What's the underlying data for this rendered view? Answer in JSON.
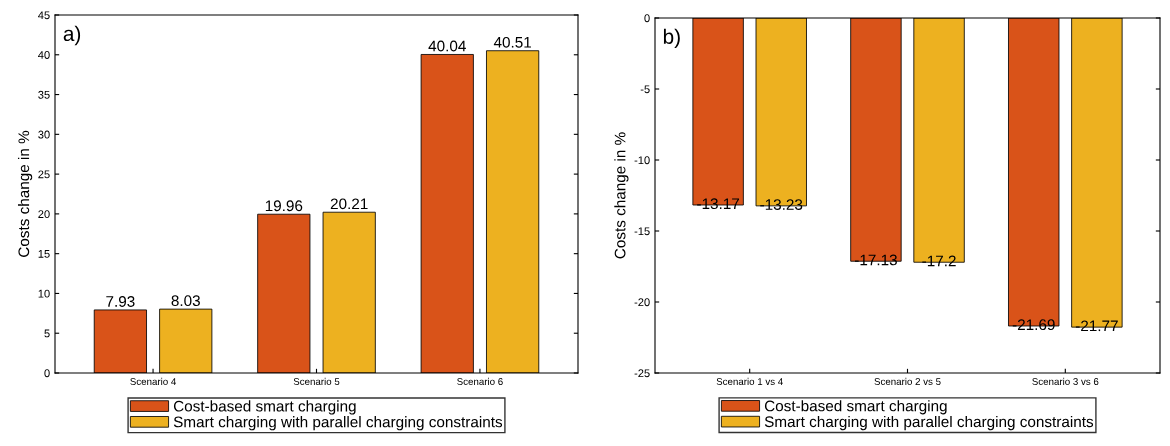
{
  "chart_data": [
    {
      "type": "bar",
      "ylabel": "Costs change in %",
      "annotations": [
        "a)"
      ],
      "categories": [
        "Scenario 4",
        "Scenario 5",
        "Scenario 6"
      ],
      "ylim": [
        0,
        45
      ],
      "yticks": [
        0,
        5,
        10,
        15,
        20,
        25,
        30,
        35,
        40,
        45
      ],
      "data_labels": true,
      "legend": "bottom",
      "grid": false,
      "series": [
        {
          "name": "Cost-based smart charging",
          "color": "#d95319",
          "values": [
            7.93,
            19.96,
            40.04
          ]
        },
        {
          "name": "Smart charging with parallel charging constraints",
          "color": "#edb120",
          "values": [
            8.03,
            20.21,
            40.51
          ]
        }
      ]
    },
    {
      "type": "bar",
      "ylabel": "Costs change in %",
      "annotations": [
        "b)"
      ],
      "categories": [
        "Scenario 1 vs 4",
        "Scenario 2 vs 5",
        "Scenario 3 vs 6"
      ],
      "ylim": [
        -25,
        0
      ],
      "yticks": [
        -25,
        -20,
        -15,
        -10,
        -5,
        0
      ],
      "data_labels": true,
      "legend": "bottom",
      "grid": false,
      "series": [
        {
          "name": "Cost-based smart charging",
          "color": "#d95319",
          "values": [
            -13.17,
            -17.13,
            -21.69
          ]
        },
        {
          "name": "Smart charging with parallel charging constraints",
          "color": "#edb120",
          "values": [
            -13.23,
            -17.2,
            -21.77
          ]
        }
      ]
    }
  ]
}
